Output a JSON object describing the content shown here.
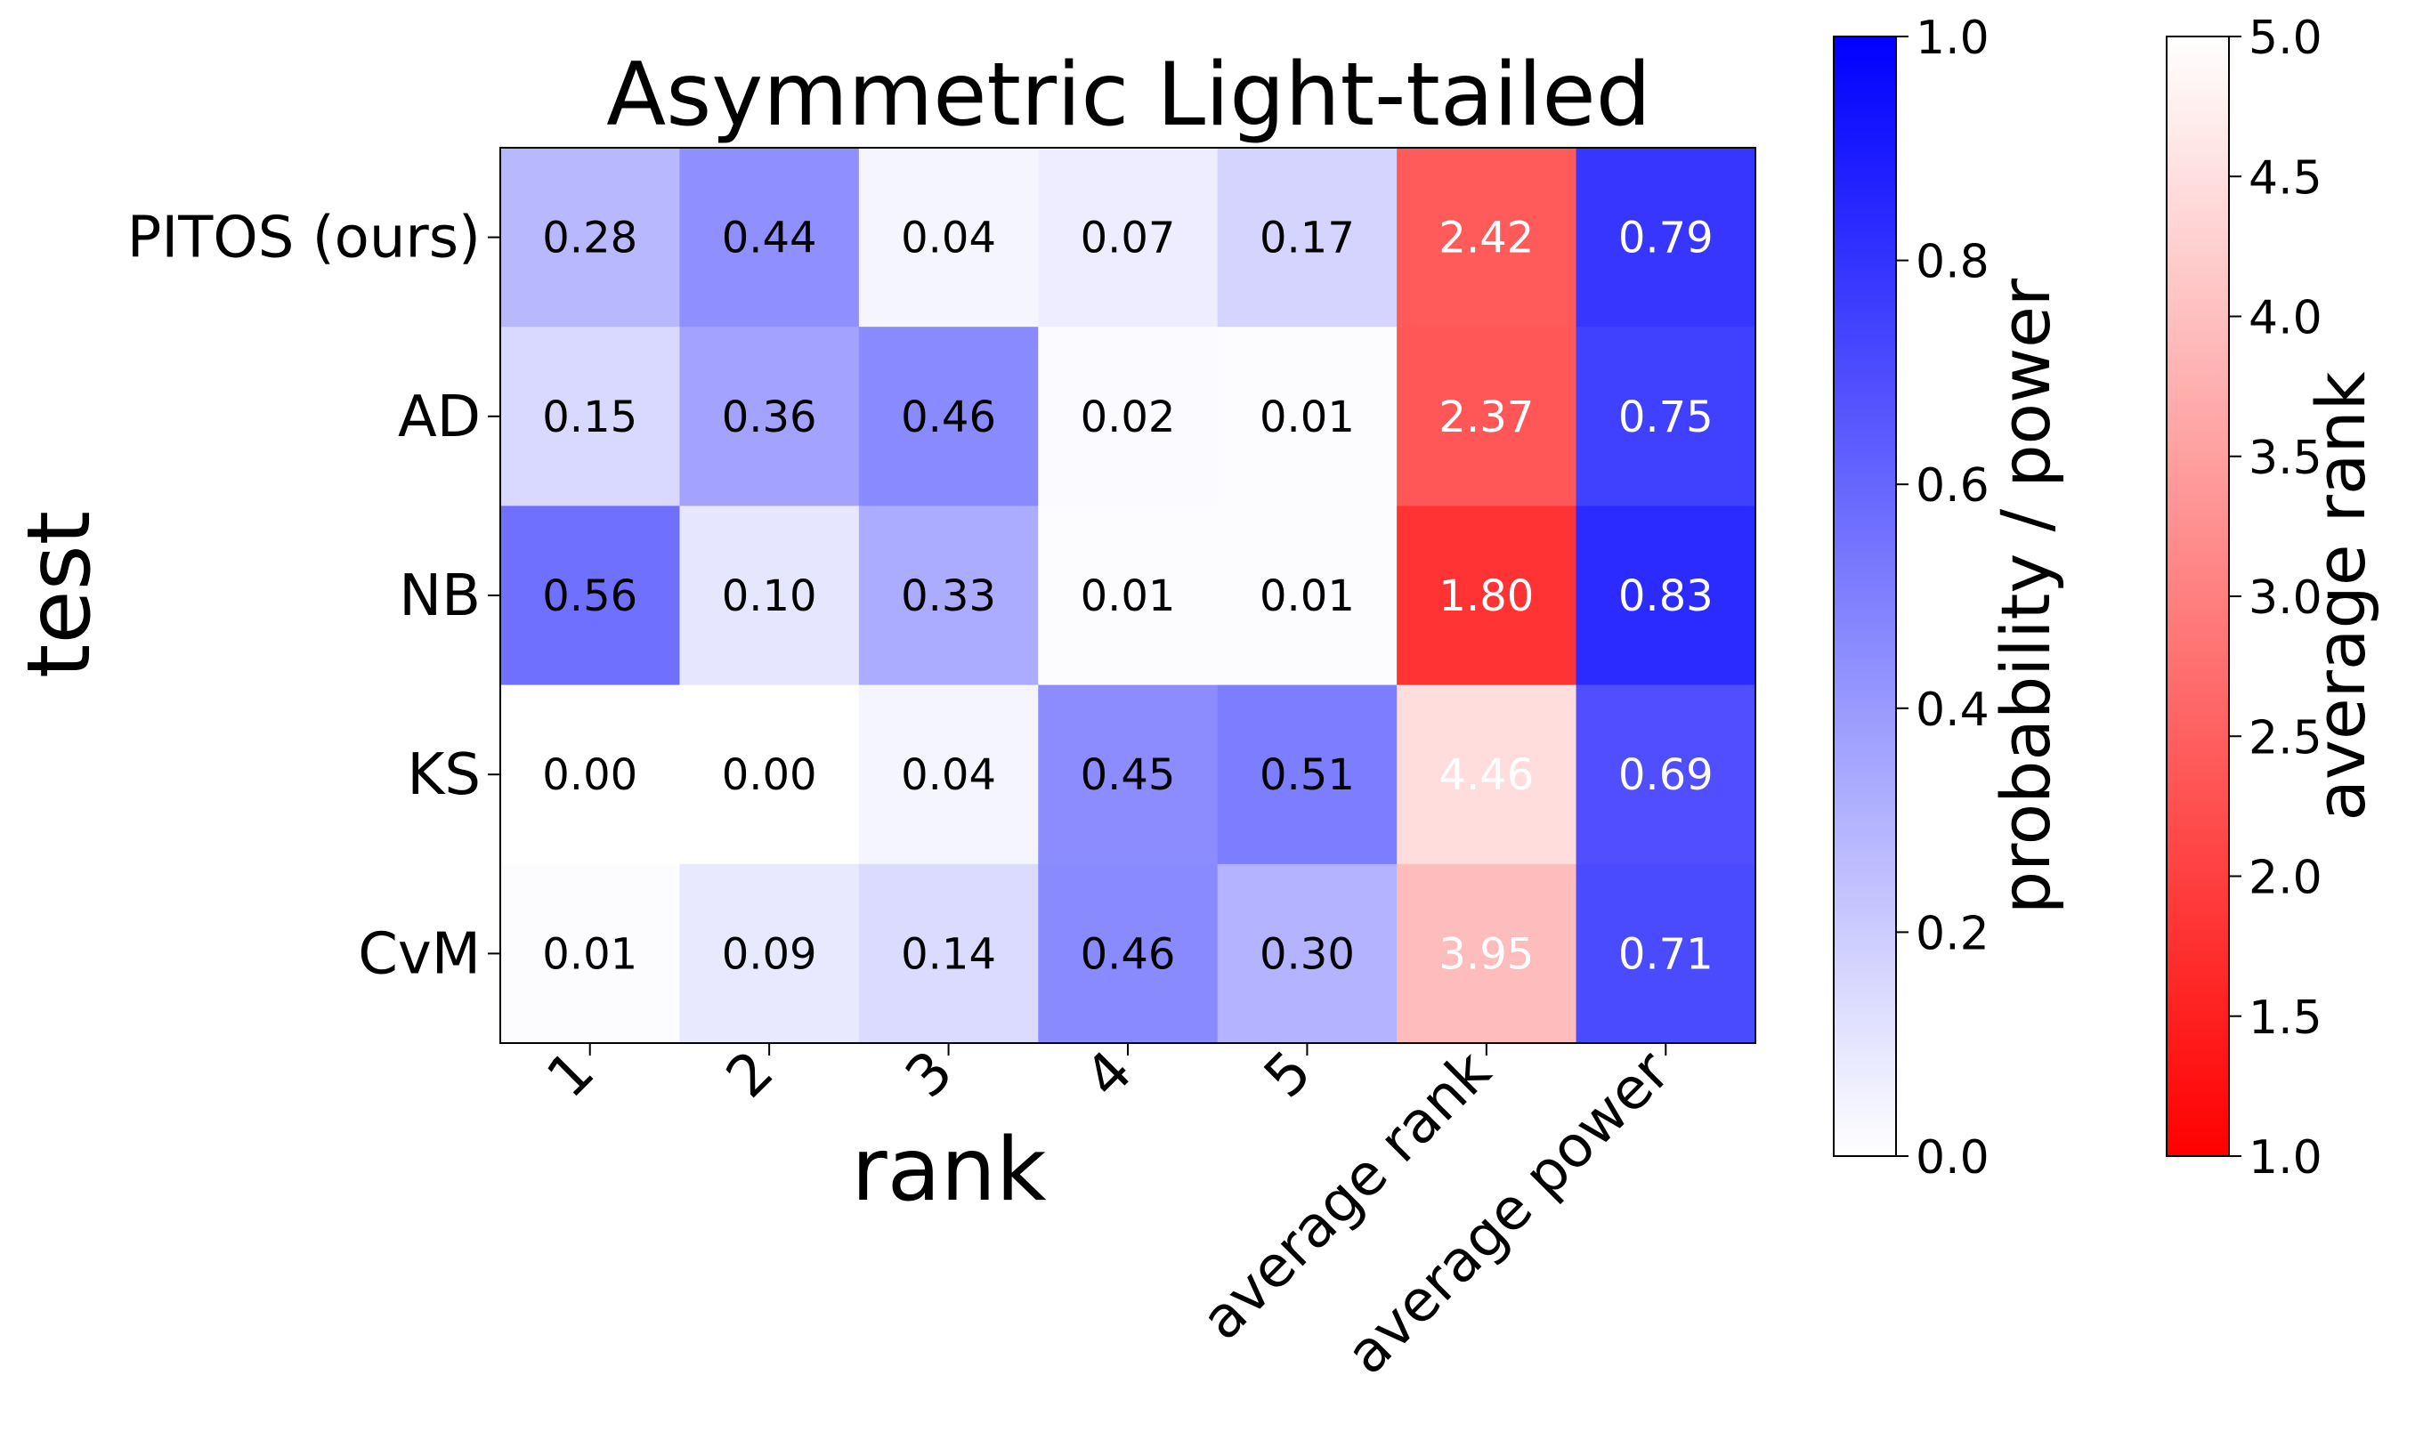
{
  "chart_data": {
    "type": "heatmap",
    "title": "Asymmetric Light-tailed",
    "xlabel": "rank",
    "ylabel": "test",
    "rows": [
      "PITOS (ours)",
      "AD",
      "NB",
      "KS",
      "CvM"
    ],
    "columns": [
      "1",
      "2",
      "3",
      "4",
      "5",
      "average rank",
      "average power"
    ],
    "values": [
      [
        0.28,
        0.44,
        0.04,
        0.07,
        0.17,
        2.42,
        0.79
      ],
      [
        0.15,
        0.36,
        0.46,
        0.02,
        0.01,
        2.37,
        0.75
      ],
      [
        0.56,
        0.1,
        0.33,
        0.01,
        0.01,
        1.8,
        0.83
      ],
      [
        0.0,
        0.0,
        0.04,
        0.45,
        0.51,
        4.46,
        0.69
      ],
      [
        0.01,
        0.09,
        0.14,
        0.46,
        0.3,
        3.95,
        0.71
      ]
    ],
    "labels": [
      [
        "0.28",
        "0.44",
        "0.04",
        "0.07",
        "0.17",
        "2.42",
        "0.79"
      ],
      [
        "0.15",
        "0.36",
        "0.46",
        "0.02",
        "0.01",
        "2.37",
        "0.75"
      ],
      [
        "0.56",
        "0.10",
        "0.33",
        "0.01",
        "0.01",
        "1.80",
        "0.83"
      ],
      [
        "0.00",
        "0.00",
        "0.04",
        "0.45",
        "0.51",
        "4.46",
        "0.69"
      ],
      [
        "0.01",
        "0.09",
        "0.14",
        "0.46",
        "0.30",
        "3.95",
        "0.71"
      ]
    ],
    "rank_column_index": 5,
    "colorbar_power": {
      "label": "probability / power",
      "range": [
        0.0,
        1.0
      ],
      "ticks": [
        "0.0",
        "0.2",
        "0.4",
        "0.6",
        "0.8",
        "1.0"
      ],
      "low_color": "#ffffff",
      "high_color": "#0000ff"
    },
    "colorbar_rank": {
      "label": "average rank",
      "range": [
        1.0,
        5.0
      ],
      "ticks": [
        "1.0",
        "1.5",
        "2.0",
        "2.5",
        "3.0",
        "3.5",
        "4.0",
        "4.5",
        "5.0"
      ],
      "low_color": "#ff0000",
      "high_color": "#ffffff"
    }
  }
}
